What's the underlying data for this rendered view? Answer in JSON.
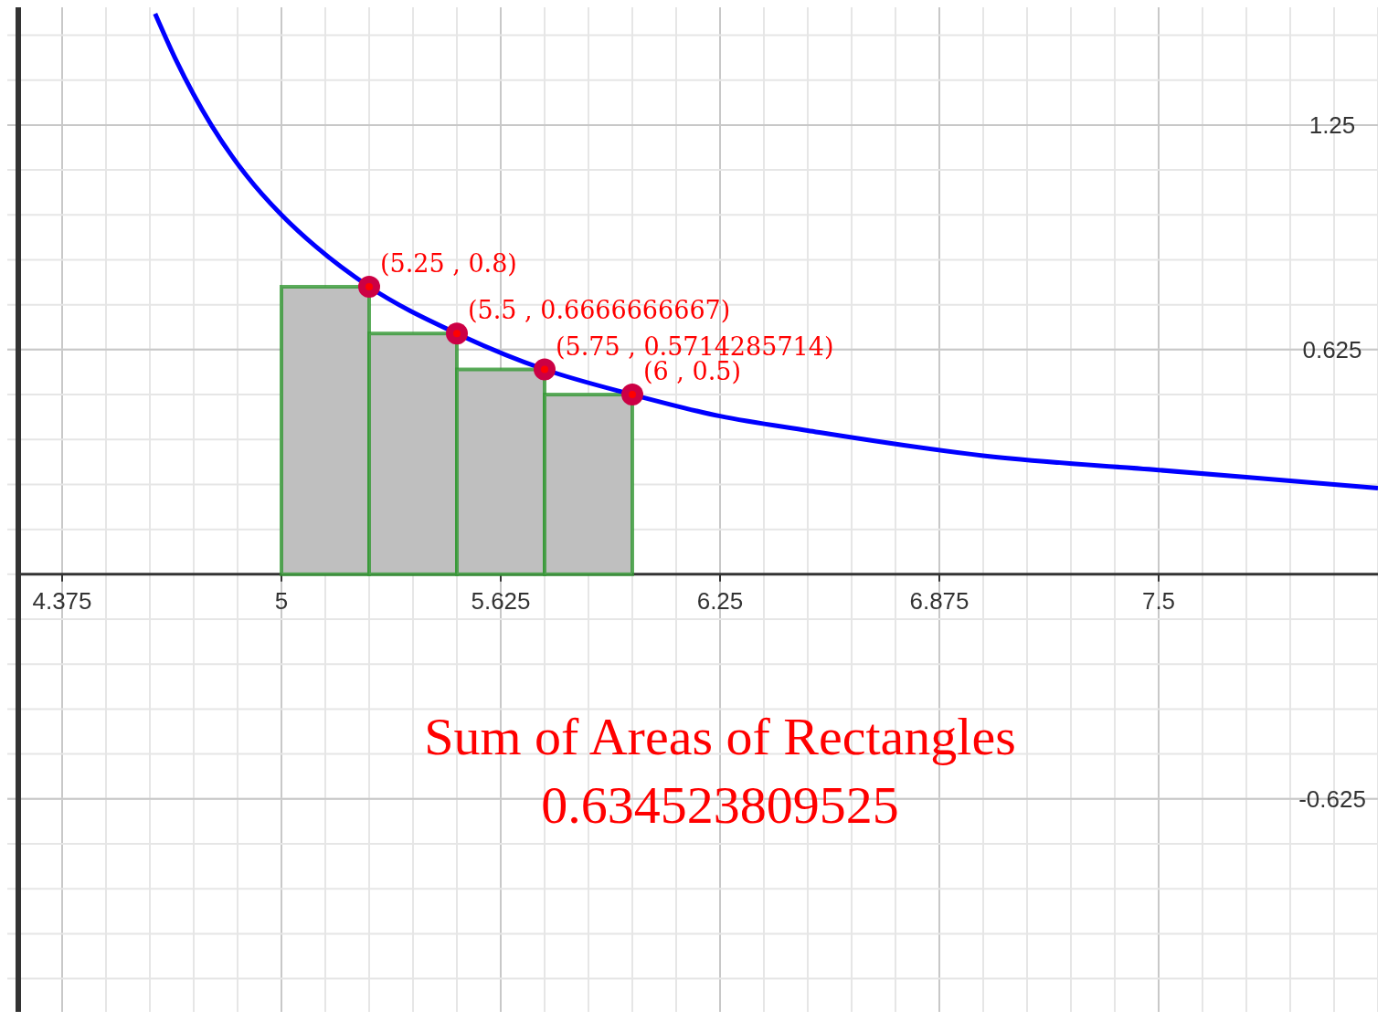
{
  "chart_data": {
    "type": "bar",
    "series": [
      {
        "color": "#bfbfbf",
        "x": [
          5.125,
          5.375,
          5.625,
          5.875
        ],
        "values": [
          0.8,
          0.67,
          0.57,
          0.5
        ]
      },
      {
        "type": "line",
        "color": "#0000ff",
        "x": [
          4.64,
          4.7,
          4.8,
          4.9,
          5,
          5.1,
          5.25,
          5.5,
          5.75,
          6,
          6.25,
          6.5,
          7,
          7.5,
          8,
          8.125
        ],
        "values": [
          1.56,
          1.43,
          1.25,
          1.11,
          1,
          0.91,
          0.8,
          0.67,
          0.57,
          0.5,
          0.44,
          0.4,
          0.33,
          0.29,
          0.25,
          0.24
        ]
      },
      {
        "type": "scatter",
        "color": "#cc0044",
        "x": [
          5.25,
          5.5,
          5.75,
          6
        ],
        "values": [
          0.8,
          0.67,
          0.57,
          0.5
        ],
        "value_labels": [
          "(5.25 , 0.8)",
          "(5.5 , 0.6666666667)",
          "(5.75 , 0.5714285714)",
          "(6 , 0.5)"
        ],
        "marker": "circle"
      }
    ],
    "xlim": [
      4.25,
      8.125
    ],
    "ylim": [
      -1.2175,
      1.5775
    ],
    "xticks": [
      4.375,
      5,
      5.625,
      6.25,
      6.875,
      7.5
    ],
    "yticks": [
      -0.625,
      0.625,
      1.25
    ],
    "grid": true,
    "annotations": [
      "Sum of Areas of Rectangles",
      "0.634523809525"
    ]
  }
}
